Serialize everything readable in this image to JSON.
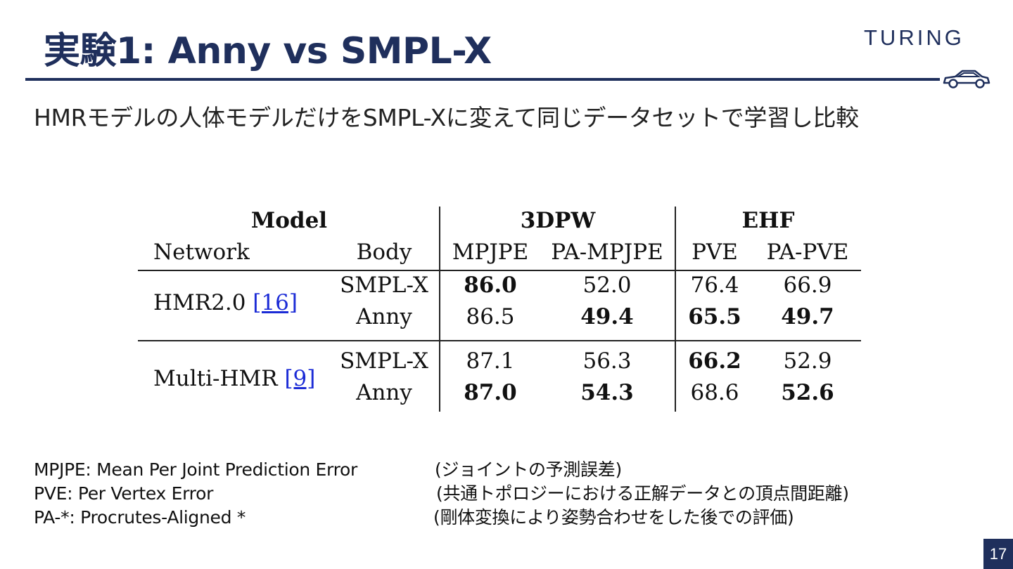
{
  "slide": {
    "title": "実験1: Anny vs SMPL-X",
    "logo_text": "TURING",
    "subtitle": "HMRモデルの人体モデルだけをSMPL-Xに変えて同じデータセットで学習し比較",
    "page_number": "17"
  },
  "table": {
    "group_model": "Model",
    "group_3dpw": "3DPW",
    "group_ehf": "EHF",
    "col_network": "Network",
    "col_body": "Body",
    "col_mpjpe": "MPJPE",
    "col_pampjpe": "PA-MPJPE",
    "col_pve": "PVE",
    "col_papve": "PA-PVE",
    "groups": [
      {
        "network": "HMR2.0",
        "cite": "[16]",
        "rows": [
          {
            "body": "SMPL-X",
            "mpjpe": "86.0",
            "pampjpe": "52.0",
            "pve": "76.4",
            "papve": "66.9"
          },
          {
            "body": "Anny",
            "mpjpe": "86.5",
            "pampjpe": "49.4",
            "pve": "65.5",
            "papve": "49.7"
          }
        ]
      },
      {
        "network": "Multi-HMR",
        "cite": "[9]",
        "rows": [
          {
            "body": "SMPL-X",
            "mpjpe": "87.1",
            "pampjpe": "56.3",
            "pve": "66.2",
            "papve": "52.9"
          },
          {
            "body": "Anny",
            "mpjpe": "87.0",
            "pampjpe": "54.3",
            "pve": "68.6",
            "papve": "52.6"
          }
        ]
      }
    ]
  },
  "legend": [
    {
      "term": "MPJPE: Mean Per Joint Prediction Error",
      "desc": "(ジョイントの予測誤差)"
    },
    {
      "term": "PVE: Per Vertex Error",
      "desc": "(共通トポロジーにおける正解データとの頂点間距離)"
    },
    {
      "term": "PA-*: Procrutes-Aligned *",
      "desc": "(剛体変換により姿勢合わせをした後での評価)"
    }
  ],
  "colors": {
    "navy": "#1f2f5c",
    "link": "#1b2bd6"
  }
}
